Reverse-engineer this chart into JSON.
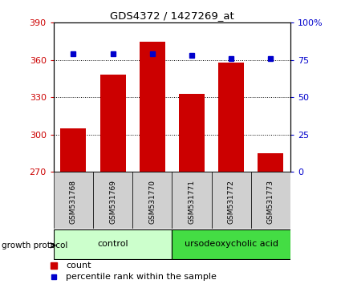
{
  "title": "GDS4372 / 1427269_at",
  "samples": [
    "GSM531768",
    "GSM531769",
    "GSM531770",
    "GSM531771",
    "GSM531772",
    "GSM531773"
  ],
  "counts": [
    305,
    348,
    375,
    333,
    358,
    285
  ],
  "percentiles": [
    79,
    79,
    79,
    78,
    76,
    76
  ],
  "ylim_left": [
    270,
    390
  ],
  "ylim_right": [
    0,
    100
  ],
  "yticks_left": [
    270,
    300,
    330,
    360,
    390
  ],
  "yticks_right": [
    0,
    25,
    50,
    75,
    100
  ],
  "bar_color": "#cc0000",
  "dot_color": "#0000cc",
  "group1_label": "control",
  "group2_label": "ursodeoxycholic acid",
  "group1_color": "#ccffcc",
  "group2_color": "#44dd44",
  "group1_indices": [
    0,
    1,
    2
  ],
  "group2_indices": [
    3,
    4,
    5
  ],
  "legend_count_label": "count",
  "legend_pct_label": "percentile rank within the sample",
  "xlabel_protocol": "growth protocol",
  "grid_yticks": [
    300,
    330,
    360
  ],
  "bar_width": 0.65,
  "left_tick_color": "#cc0000",
  "right_tick_color": "#0000cc"
}
